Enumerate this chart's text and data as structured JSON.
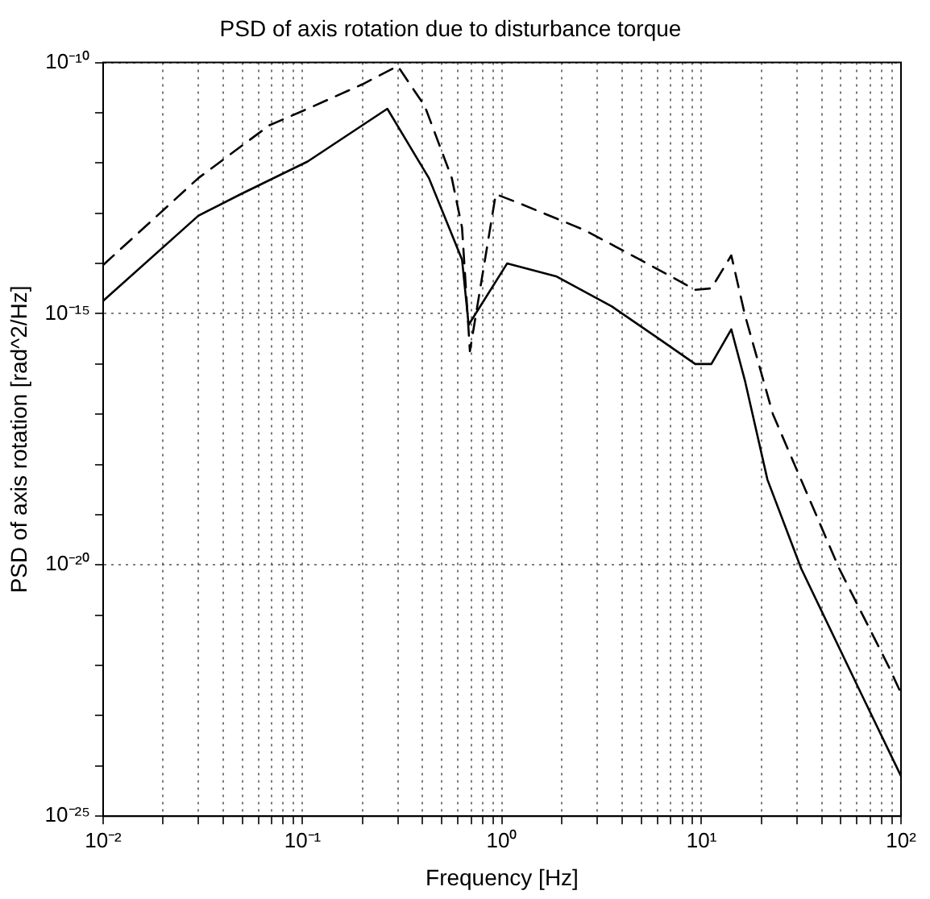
{
  "chart_data": {
    "type": "line",
    "title": "PSD of axis rotation due to disturbance torque",
    "xlabel": "Frequency [Hz]",
    "ylabel": "PSD of axis rotation [rad^2/Hz]",
    "log": "xy",
    "grid": true,
    "legend": false,
    "marker": "none",
    "xlim": [
      0.01,
      100
    ],
    "ylim": [
      1e-25,
      1e-10
    ],
    "xticks": [
      {
        "value": 0.01,
        "label": "10⁻²"
      },
      {
        "value": 0.02,
        "label": null
      },
      {
        "value": 0.03,
        "label": null
      },
      {
        "value": 0.04,
        "label": null
      },
      {
        "value": 0.05,
        "label": null
      },
      {
        "value": 0.06,
        "label": null
      },
      {
        "value": 0.07,
        "label": null
      },
      {
        "value": 0.08,
        "label": null
      },
      {
        "value": 0.09,
        "label": null
      },
      {
        "value": 0.1,
        "label": "10⁻¹"
      },
      {
        "value": 0.2,
        "label": null
      },
      {
        "value": 0.3,
        "label": null
      },
      {
        "value": 0.4,
        "label": null
      },
      {
        "value": 0.5,
        "label": null
      },
      {
        "value": 0.6,
        "label": null
      },
      {
        "value": 0.7,
        "label": null
      },
      {
        "value": 0.8,
        "label": null
      },
      {
        "value": 0.9,
        "label": null
      },
      {
        "value": 1,
        "label": "10⁰"
      },
      {
        "value": 2,
        "label": null
      },
      {
        "value": 3,
        "label": null
      },
      {
        "value": 4,
        "label": null
      },
      {
        "value": 5,
        "label": null
      },
      {
        "value": 6,
        "label": null
      },
      {
        "value": 7,
        "label": null
      },
      {
        "value": 8,
        "label": null
      },
      {
        "value": 9,
        "label": null
      },
      {
        "value": 10,
        "label": "10¹"
      },
      {
        "value": 20,
        "label": null
      },
      {
        "value": 30,
        "label": null
      },
      {
        "value": 40,
        "label": null
      },
      {
        "value": 50,
        "label": null
      },
      {
        "value": 60,
        "label": null
      },
      {
        "value": 70,
        "label": null
      },
      {
        "value": 80,
        "label": null
      },
      {
        "value": 90,
        "label": null
      },
      {
        "value": 100,
        "label": "10²"
      }
    ],
    "yticks": [
      {
        "value": 1e-25,
        "label": "10⁻²⁵"
      },
      {
        "value": 1e-24,
        "label": null
      },
      {
        "value": 1e-23,
        "label": null
      },
      {
        "value": 1e-22,
        "label": null
      },
      {
        "value": 1e-21,
        "label": null
      },
      {
        "value": 1e-20,
        "label": "10⁻²⁰"
      },
      {
        "value": 1e-19,
        "label": null
      },
      {
        "value": 1e-18,
        "label": null
      },
      {
        "value": 1e-17,
        "label": null
      },
      {
        "value": 1e-16,
        "label": null
      },
      {
        "value": 1e-15,
        "label": "10⁻¹⁵"
      },
      {
        "value": 1e-14,
        "label": null
      },
      {
        "value": 1e-13,
        "label": null
      },
      {
        "value": 1e-12,
        "label": null
      },
      {
        "value": 1e-11,
        "label": null
      },
      {
        "value": 1e-10,
        "label": "10⁻¹⁰"
      }
    ],
    "series": [
      {
        "color": "#000000",
        "line_style": "solid",
        "x": [
          0.01,
          0.03,
          0.049,
          0.106,
          0.266,
          0.43,
          0.63,
          0.68,
          1.06,
          1.88,
          3.55,
          5.96,
          9.3,
          11.2,
          14.1,
          16.5,
          21.4,
          31.6,
          63,
          100
        ],
        "values": [
          1.8e-15,
          8.9e-14,
          2.4e-13,
          1.07e-12,
          1.2e-11,
          5e-13,
          1.2e-14,
          6e-16,
          1e-14,
          5.5e-15,
          1.4e-15,
          3.4e-16,
          1e-16,
          1e-16,
          4.9e-16,
          4.7e-17,
          5e-19,
          8.5e-21,
          2.8e-23,
          6.3e-25
        ]
      },
      {
        "color": "#000000",
        "line_style": "dashed",
        "x": [
          0.01,
          0.03,
          0.068,
          0.106,
          0.2,
          0.3,
          0.41,
          0.56,
          0.63,
          0.69,
          0.93,
          1.21,
          2.6,
          4.9,
          9.3,
          11.2,
          14.1,
          16.5,
          22.8,
          49,
          87,
          100
        ],
        "values": [
          9.3e-15,
          5e-13,
          5.6e-12,
          1.2e-11,
          3.7e-11,
          8.5e-11,
          1.35e-11,
          5e-13,
          5.2e-14,
          1.8e-16,
          2.4e-13,
          1.6e-13,
          4.6e-14,
          1.2e-14,
          3e-15,
          3.2e-15,
          1.45e-14,
          9.5e-16,
          1e-17,
          8.5e-21,
          9.3e-23,
          2.8e-23
        ]
      }
    ]
  }
}
